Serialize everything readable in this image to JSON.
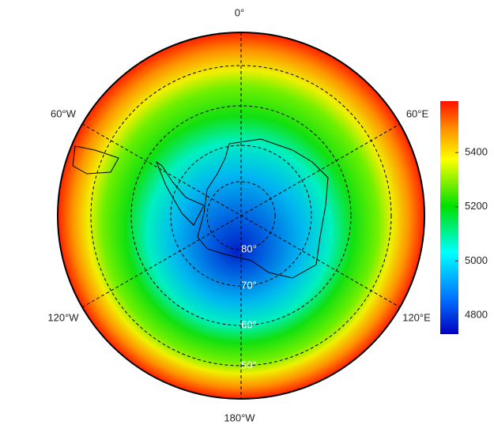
{
  "map": {
    "longitude_labels": [
      "0°",
      "60°E",
      "120°E",
      "180°W",
      "120°W",
      "60°W"
    ],
    "latitude_labels": [
      "80°",
      "70°",
      "60°",
      "50°"
    ],
    "colorbar": {
      "lim": [
        4730,
        5590
      ],
      "ticks": [
        4800,
        5000,
        5200,
        5400
      ]
    }
  }
}
